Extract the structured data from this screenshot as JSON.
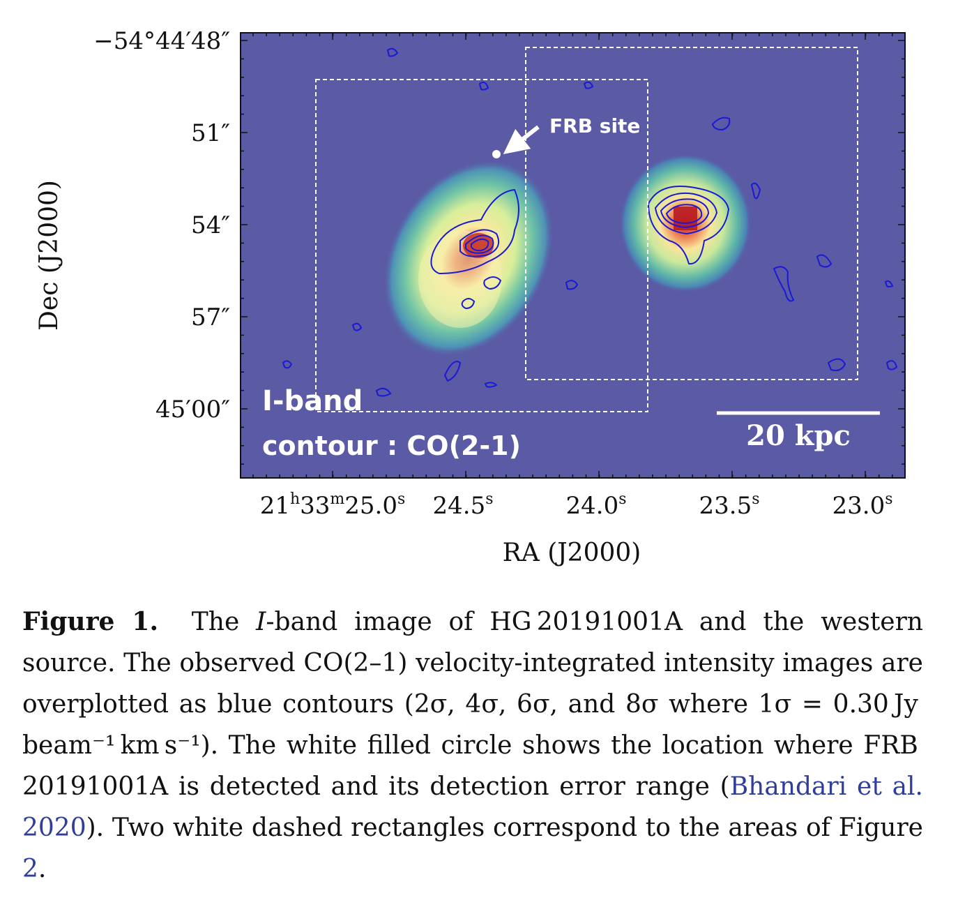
{
  "figure": {
    "y_axis": {
      "title": "Dec (J2000)",
      "ticks": [
        "−54°44′48″",
        "51″",
        "54″",
        "57″",
        "45′00″"
      ]
    },
    "x_axis": {
      "title": "RA (J2000)",
      "ticks": [
        {
          "main": "21",
          "sup1": "h",
          "mid": "33",
          "sup2": "m",
          "val": "25.0",
          "sup3": "s"
        },
        {
          "val": "24.5",
          "sup3": "s"
        },
        {
          "val": "24.0",
          "sup3": "s"
        },
        {
          "val": "23.5",
          "sup3": "s"
        },
        {
          "val": "23.0",
          "sup3": "s"
        }
      ]
    },
    "annotations": {
      "frb_label": "FRB site",
      "band_label": "I-band",
      "contour_label": "contour : CO(2-1)",
      "scale_bar": "20 kpc"
    },
    "colors": {
      "background": "#5a5aa5",
      "contour": "#1a1ad6",
      "dashed_box": "#ffffff"
    }
  },
  "caption": {
    "label": "Figure 1.",
    "text_1": "The ",
    "italic_I": "I",
    "text_2": "-band image of HG 20191001A and the western source. The observed CO(2–1) velocity-integrated intensity images are overplotted as blue contours (2σ, 4σ, 6σ, and 8σ where 1σ = 0.30 Jy beam⁻¹ km s⁻¹). The white filled circle shows the location where FRB 20191001A is detected and its detection error range (",
    "citation": "Bhandari et al. 2020",
    "text_3": "). Two white dashed rectangles correspond to the areas of Figure ",
    "fig_ref": "2",
    "text_4": "."
  }
}
